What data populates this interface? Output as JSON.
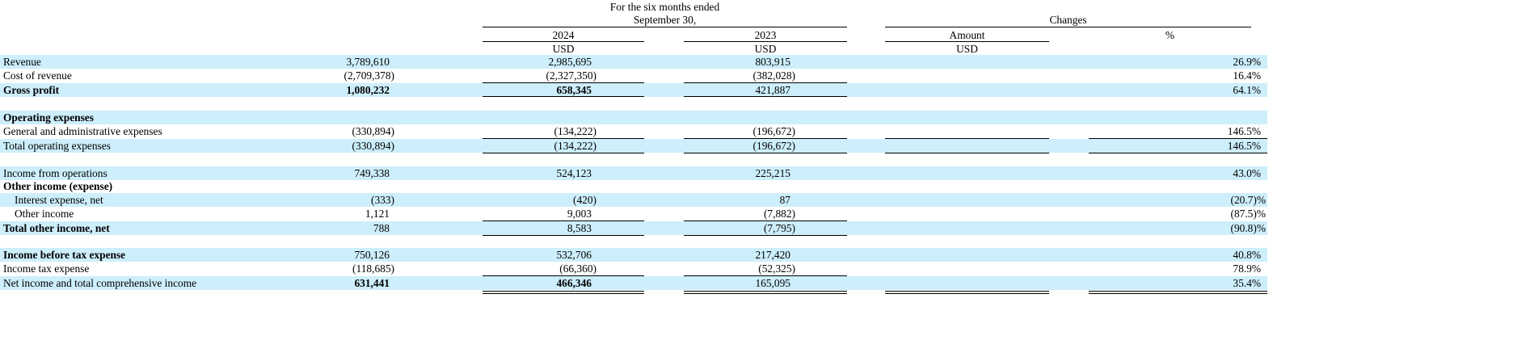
{
  "header": {
    "period_line1": "For the six months ended",
    "period_line2": "September 30,",
    "changes": "Changes",
    "col_2024": "2024",
    "col_2023": "2023",
    "col_amount": "Amount",
    "col_pct": "%",
    "unit_2024": "USD",
    "unit_2023": "USD",
    "unit_amount": "USD"
  },
  "rows": [
    {
      "label": "Revenue",
      "v2024": "3,789,610",
      "v2023": "2,985,695",
      "amount": "803,915",
      "pct": "26.9%"
    },
    {
      "label": "Cost of revenue",
      "v2024": "(2,709,378)",
      "v2023": "(2,327,350)",
      "amount": "(382,028)",
      "pct": "16.4%"
    },
    {
      "label": "Gross profit",
      "v2024": "1,080,232",
      "v2023": "658,345",
      "amount": "421,887",
      "pct": "64.1%"
    },
    {
      "label": "Operating expenses",
      "v2024": "",
      "v2023": "",
      "amount": "",
      "pct": ""
    },
    {
      "label": "General and administrative expenses",
      "v2024": "(330,894)",
      "v2023": "(134,222)",
      "amount": "(196,672)",
      "pct": "146.5%"
    },
    {
      "label": "Total operating expenses",
      "v2024": "(330,894)",
      "v2023": "(134,222)",
      "amount": "(196,672)",
      "pct": "146.5%"
    },
    {
      "label": "Income from operations",
      "v2024": "749,338",
      "v2023": "524,123",
      "amount": "225,215",
      "pct": "43.0%"
    },
    {
      "label": "Other income (expense)",
      "v2024": "",
      "v2023": "",
      "amount": "",
      "pct": ""
    },
    {
      "label": "Interest expense, net",
      "v2024": "(333)",
      "v2023": "(420)",
      "amount": "87",
      "pct": "(20.7)%"
    },
    {
      "label": "Other income",
      "v2024": "1,121",
      "v2023": "9,003",
      "amount": "(7,882)",
      "pct": "(87.5)%"
    },
    {
      "label": "Total other income, net",
      "v2024": "788",
      "v2023": "8,583",
      "amount": "(7,795)",
      "pct": "(90.8)%"
    },
    {
      "label": "Income before tax expense",
      "v2024": "750,126",
      "v2023": "532,706",
      "amount": "217,420",
      "pct": "40.8%"
    },
    {
      "label": "Income tax expense",
      "v2024": "(118,685)",
      "v2023": "(66,360)",
      "amount": "(52,325)",
      "pct": "78.9%"
    },
    {
      "label": "Net income and total comprehensive income",
      "v2024": "631,441",
      "v2023": "466,346",
      "amount": "165,095",
      "pct": "35.4%"
    }
  ],
  "colors": {
    "row_shade": "#cdeefb",
    "text": "#000000"
  }
}
